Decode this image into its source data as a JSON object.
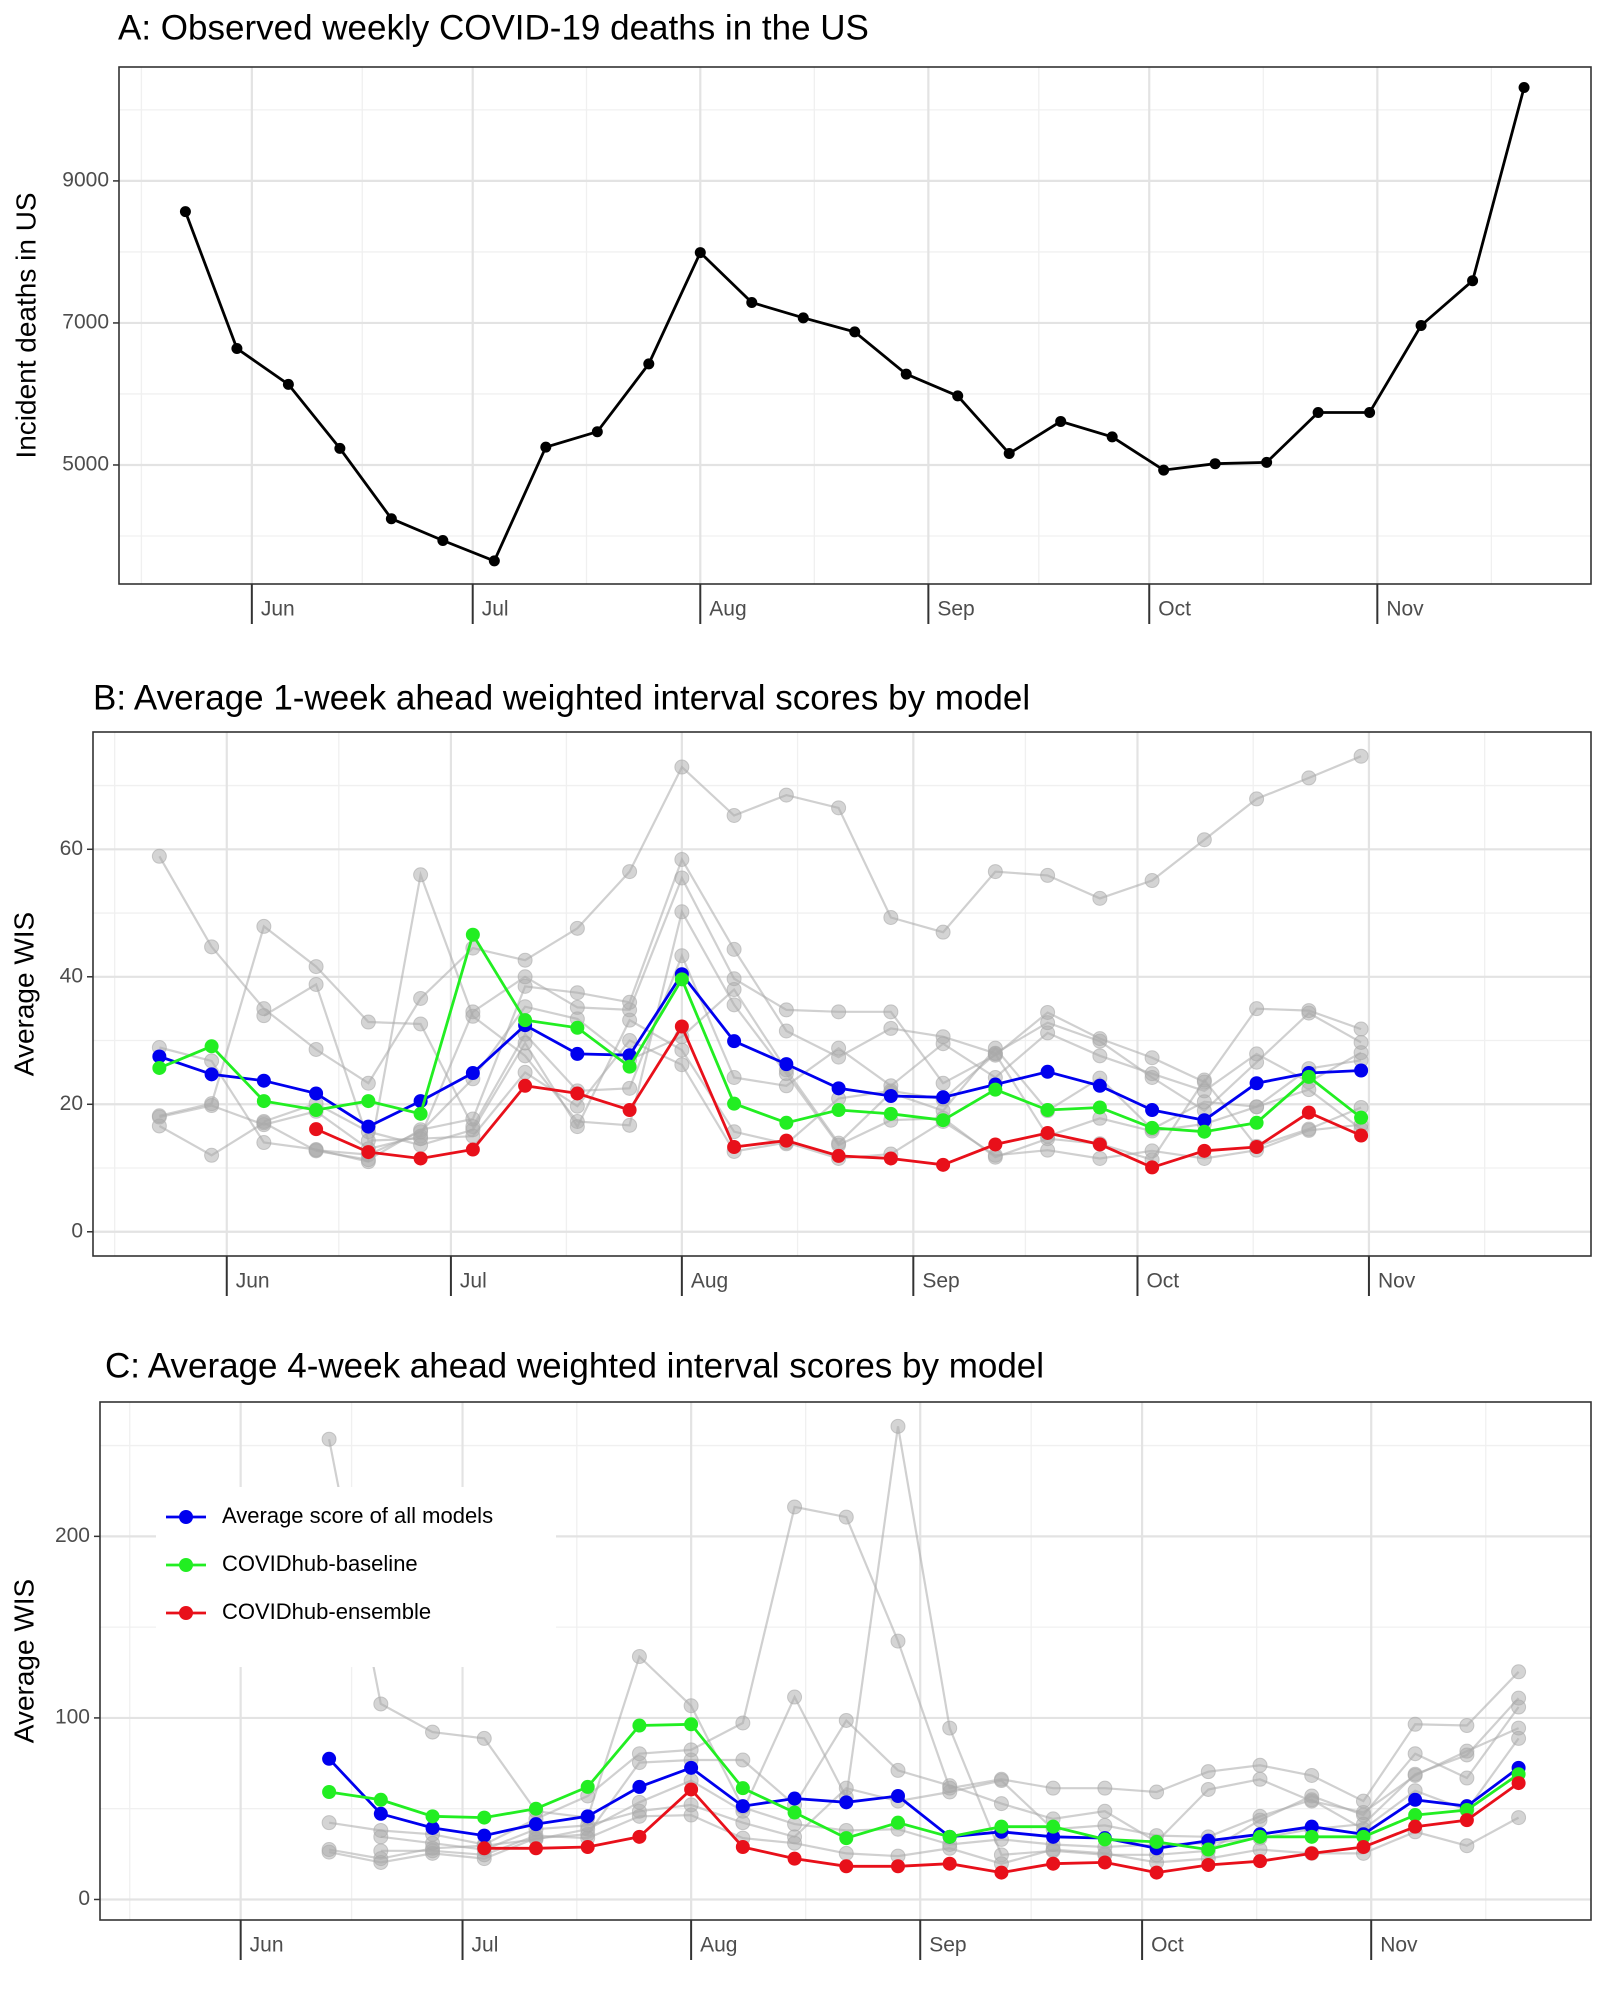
{
  "chart_data": [
    {
      "type": "line",
      "title": "A: Observed weekly COVID-19 deaths in the US",
      "ylabel": "Incident deaths in US",
      "x": [
        0,
        1,
        2,
        3,
        4,
        5,
        6,
        7,
        8,
        9,
        10,
        11,
        12,
        13,
        14,
        15,
        16,
        17,
        18,
        19,
        20,
        21,
        22,
        23,
        24,
        25,
        26
      ],
      "xlim": [
        -1.29,
        27.3
      ],
      "xticks": [
        {
          "value": 1.29,
          "label": "Jun"
        },
        {
          "value": 5.58,
          "label": "Jul"
        },
        {
          "value": 10.0,
          "label": "Aug"
        },
        {
          "value": 14.43,
          "label": "Sep"
        },
        {
          "value": 18.72,
          "label": "Oct"
        },
        {
          "value": 23.15,
          "label": "Nov"
        }
      ],
      "values": [
        8568,
        6640,
        6135,
        5234,
        4243,
        3937,
        3649,
        5252,
        5468,
        6423,
        7991,
        7288,
        7072,
        6874,
        6279,
        5973,
        5162,
        5613,
        5396,
        4928,
        5018,
        5036,
        5739,
        5739,
        6964,
        7595,
        10315
      ],
      "color": "#000000",
      "ylim": [
        3324,
        10604
      ],
      "yticks": [
        5000,
        7000,
        9000
      ],
      "grid": true
    },
    {
      "type": "line",
      "title": "B: Average 1-week ahead weighted interval scores by model",
      "ylabel": "Average WIS",
      "x": [
        0,
        1,
        2,
        3,
        4,
        5,
        6,
        7,
        8,
        9,
        10,
        11,
        12,
        13,
        14,
        15,
        16,
        17,
        18,
        19,
        20,
        21,
        22,
        23
      ],
      "xlim": [
        -1.27,
        27.4
      ],
      "xticks": [
        {
          "value": 1.29,
          "label": "Jun"
        },
        {
          "value": 5.58,
          "label": "Jul"
        },
        {
          "value": 10.0,
          "label": "Aug"
        },
        {
          "value": 14.43,
          "label": "Sep"
        },
        {
          "value": 18.72,
          "label": "Oct"
        },
        {
          "value": 23.15,
          "label": "Nov"
        }
      ],
      "ylim": [
        -3.8,
        78.4
      ],
      "yticks": [
        0,
        20,
        40,
        60
      ],
      "grid": true,
      "series": [
        {
          "name": "Average score of all models",
          "color": "#0000ee",
          "values": [
            27.5,
            24.7,
            23.7,
            21.7,
            16.5,
            20.5,
            24.9,
            32.4,
            27.9,
            27.7,
            40.4,
            29.9,
            26.3,
            22.5,
            21.3,
            21.1,
            23.1,
            25.1,
            22.9,
            19.1,
            17.5,
            23.3,
            24.9,
            25.3
          ]
        },
        {
          "name": "COVIDhub-baseline",
          "color": "#22ee22",
          "values": [
            25.7,
            29.1,
            20.5,
            19.1,
            20.5,
            18.5,
            46.6,
            33.2,
            32.0,
            25.9,
            39.6,
            20.1,
            17.1,
            19.1,
            18.5,
            17.5,
            22.3,
            19.1,
            19.5,
            16.3,
            15.7,
            17.1,
            24.3,
            17.9
          ]
        },
        {
          "name": "COVIDhub-ensemble",
          "color": "#e8101a",
          "values": [
            null,
            null,
            null,
            16.1,
            12.5,
            11.5,
            12.9,
            22.9,
            21.7,
            19.1,
            32.2,
            13.3,
            14.3,
            11.9,
            11.5,
            10.5,
            13.7,
            15.5,
            13.7,
            10.1,
            12.7,
            13.3,
            18.7,
            15.1
          ]
        },
        {
          "color": "#aaaaaa",
          "values": [
            58.9,
            44.7,
            35.0,
            28.6,
            23.3,
            36.6,
            44.5,
            42.6,
            47.6,
            56.5,
            72.9,
            65.3,
            68.5,
            66.5,
            49.3,
            47.0,
            56.5,
            55.9,
            52.3,
            55.1,
            61.5,
            67.9,
            71.2,
            74.6
          ]
        },
        {
          "color": "#aaaaaa",
          "values": [
            18.0,
            19.8,
            16.8,
            18.9,
            13.0,
            15.0,
            34.5,
            40.0,
            35.2,
            34.8,
            55.5,
            39.7,
            34.8,
            34.5,
            34.5,
            23.3,
            27.7,
            34.4,
            30.3,
            27.3,
            23.5,
            35.0,
            34.7,
            31.8
          ]
        },
        {
          "color": "#aaaaaa",
          "values": [
            16.6,
            12.0,
            17.1,
            12.7,
            11.3,
            16.0,
            17.7,
            38.5,
            37.5,
            36.0,
            58.4,
            44.3,
            31.5,
            27.4,
            31.9,
            30.6,
            28.0,
            32.8,
            29.9,
            24.2,
            19.0,
            26.6,
            34.3,
            29.7
          ]
        },
        {
          "color": "#aaaaaa",
          "values": [
            28.9,
            26.8,
            14.0,
            12.9,
            11.0,
            56.0,
            33.8,
            27.6,
            17.3,
            16.7,
            50.2,
            35.6,
            24.8,
            13.6,
            17.5,
            17.8,
            11.7,
            14.6,
            13.8,
            11.3,
            23.8,
            13.4,
            16.1,
            19.5
          ]
        },
        {
          "color": "#aaaaaa",
          "values": [
            18.2,
            20.1,
            47.9,
            41.6,
            32.9,
            32.6,
            16.5,
            31.0,
            22.1,
            22.5,
            43.3,
            24.2,
            22.9,
            28.8,
            22.9,
            29.5,
            24.2,
            31.2,
            27.6,
            24.8,
            22.1,
            27.9,
            23.5,
            28.1
          ]
        },
        {
          "color": "#aaaaaa",
          "values": [
            null,
            null,
            33.9,
            38.8,
            14.3,
            14.6,
            15.0,
            25.0,
            19.7,
            30.0,
            26.2,
            12.6,
            14.0,
            11.5,
            12.2,
            17.3,
            12.0,
            12.8,
            11.5,
            12.7,
            11.5,
            12.8,
            15.9,
            16.8
          ]
        },
        {
          "color": "#aaaaaa",
          "values": [
            null,
            null,
            17.3,
            20.1,
            15.7,
            13.6,
            16.0,
            29.6,
            16.5,
            33.2,
            28.5,
            15.7,
            13.8,
            20.9,
            22.1,
            20.8,
            27.9,
            15.0,
            17.8,
            15.8,
            16.9,
            19.6,
            22.3,
            16.1
          ]
        },
        {
          "color": "#aaaaaa",
          "values": [
            null,
            null,
            null,
            12.8,
            12.1,
            15.7,
            24.0,
            35.3,
            33.4,
            27.0,
            30.6,
            38.0,
            25.4,
            13.9,
            21.8,
            19.0,
            28.8,
            19.0,
            24.1,
            16.1,
            20.4,
            19.6,
            25.6,
            26.9
          ]
        }
      ]
    },
    {
      "type": "line",
      "title": "C: Average 4-week ahead weighted interval scores by model",
      "ylabel": "Average WIS",
      "x": [
        3,
        4,
        5,
        6,
        7,
        8,
        9,
        10,
        11,
        12,
        13,
        14,
        15,
        16,
        17,
        18,
        19,
        20,
        21,
        22,
        23,
        24,
        25,
        26
      ],
      "xlim": [
        -1.43,
        27.4
      ],
      "xticks": [
        {
          "value": 1.29,
          "label": "Jun"
        },
        {
          "value": 5.58,
          "label": "Jul"
        },
        {
          "value": 10.0,
          "label": "Aug"
        },
        {
          "value": 14.43,
          "label": "Sep"
        },
        {
          "value": 18.72,
          "label": "Oct"
        },
        {
          "value": 23.15,
          "label": "Nov"
        }
      ],
      "ylim": [
        -11.3,
        274
      ],
      "yticks": [
        0,
        100,
        200
      ],
      "grid": true,
      "legend": "top-left",
      "series": [
        {
          "name": "Average score of all models",
          "color": "#0000ee",
          "values": [
            77.5,
            47.2,
            39.4,
            35.2,
            41.5,
            45.8,
            62.0,
            72.5,
            51.4,
            55.6,
            53.5,
            57.0,
            34.5,
            37.3,
            34.5,
            33.8,
            28.2,
            32.4,
            35.9,
            40.1,
            35.9,
            54.9,
            51.4,
            72.5
          ]
        },
        {
          "name": "COVIDhub-baseline",
          "color": "#22ee22",
          "values": [
            59.2,
            54.9,
            45.8,
            45.1,
            50.0,
            62.0,
            95.8,
            96.5,
            61.3,
            47.9,
            33.8,
            42.3,
            34.5,
            40.1,
            40.1,
            33.1,
            31.7,
            27.5,
            34.5,
            34.5,
            34.5,
            46.5,
            49.3,
            69.0
          ]
        },
        {
          "name": "COVIDhub-ensemble",
          "color": "#e8101a",
          "values": [
            null,
            null,
            null,
            28.2,
            28.2,
            28.9,
            34.5,
            60.6,
            28.9,
            22.5,
            18.3,
            18.3,
            19.7,
            14.8,
            19.7,
            20.4,
            14.8,
            19.0,
            21.1,
            25.4,
            28.9,
            40.1,
            43.7,
            64.1
          ]
        },
        {
          "color": "#aaaaaa",
          "values": [
            253.5,
            107.7,
            92.2,
            88.7,
            48.6,
            45.1,
            133.8,
            106.7,
            50.7,
            41.5,
            38.0,
            38.7,
            30.3,
            33.1,
            30.3,
            28.9,
            30.3,
            31.0,
            33.8,
            38.7,
            41.5,
            69.0,
            79.6,
            110.9
          ]
        },
        {
          "color": "#aaaaaa",
          "values": [
            42.3,
            38.0,
            35.9,
            30.3,
            44.4,
            57.0,
            80.3,
            82.4,
            97.2,
            216.2,
            210.6,
            142.3,
            61.3,
            66.2,
            61.3,
            61.3,
            59.2,
            70.4,
            73.9,
            68.3,
            54.2,
            96.5,
            95.8,
            125.4
          ]
        },
        {
          "color": "#aaaaaa",
          "values": [
            27.5,
            22.5,
            28.2,
            29.6,
            33.1,
            38.7,
            53.5,
            65.5,
            48.6,
            111.5,
            56.3,
            260.6,
            94.4,
            24.6,
            26.8,
            24.6,
            24.6,
            26.8,
            43.7,
            57.0,
            46.5,
            80.3,
            66.9,
            106.0
          ]
        },
        {
          "color": "#aaaaaa",
          "values": [
            26.1,
            20.4,
            25.4,
            22.5,
            33.8,
            35.9,
            75.4,
            76.8,
            76.8,
            52.1,
            98.6,
            71.1,
            62.7,
            52.8,
            44.4,
            48.6,
            31.7,
            60.6,
            66.2,
            54.2,
            47.9,
            68.3,
            81.7,
            94.4
          ]
        },
        {
          "color": "#aaaaaa",
          "values": [
            null,
            34.5,
            31.0,
            27.5,
            38.7,
            40.8,
            48.6,
            52.1,
            42.3,
            34.5,
            61.3,
            54.2,
            59.2,
            65.5,
            38.7,
            40.8,
            35.2,
            34.5,
            45.8,
            54.9,
            38.7,
            59.9,
            49.3,
            88.7
          ]
        },
        {
          "color": "#aaaaaa",
          "values": [
            null,
            26.8,
            26.8,
            24.6,
            35.2,
            33.8,
            45.8,
            46.5,
            33.8,
            31.0,
            25.4,
            23.9,
            28.2,
            19.7,
            27.5,
            25.4,
            20.4,
            22.5,
            27.5,
            25.4,
            25.4,
            37.3,
            29.6,
            45.1
          ]
        }
      ]
    }
  ]
}
